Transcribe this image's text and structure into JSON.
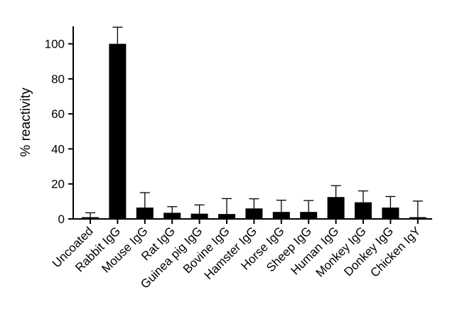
{
  "chart_data": {
    "type": "bar",
    "title": "",
    "xlabel": "",
    "ylabel": "% reactivity",
    "ylim": [
      0,
      110
    ],
    "yticks": [
      0,
      20,
      40,
      60,
      80,
      100
    ],
    "grid": false,
    "legend": "none",
    "bar_color": "#000000",
    "categories": [
      "Uncoated",
      "Rabbit IgG",
      "Mouse IgG",
      "Rat IgG",
      "Guinea pig IgG",
      "Bovine IgG",
      "Hamster IgG",
      "Horse IgG",
      "Sheep IgG",
      "Human IgG",
      "Monkey IgG",
      "Donkey IgG",
      "Chicken IgY"
    ],
    "values": [
      1,
      100,
      6.5,
      3.5,
      3,
      2.8,
      6,
      4,
      4,
      12.5,
      9.5,
      6.5,
      1
    ],
    "error_upper": [
      2.5,
      9.5,
      8.5,
      3.5,
      5,
      8.8,
      5.5,
      6.7,
      6.5,
      6.5,
      6.5,
      6.3,
      9.2
    ]
  }
}
